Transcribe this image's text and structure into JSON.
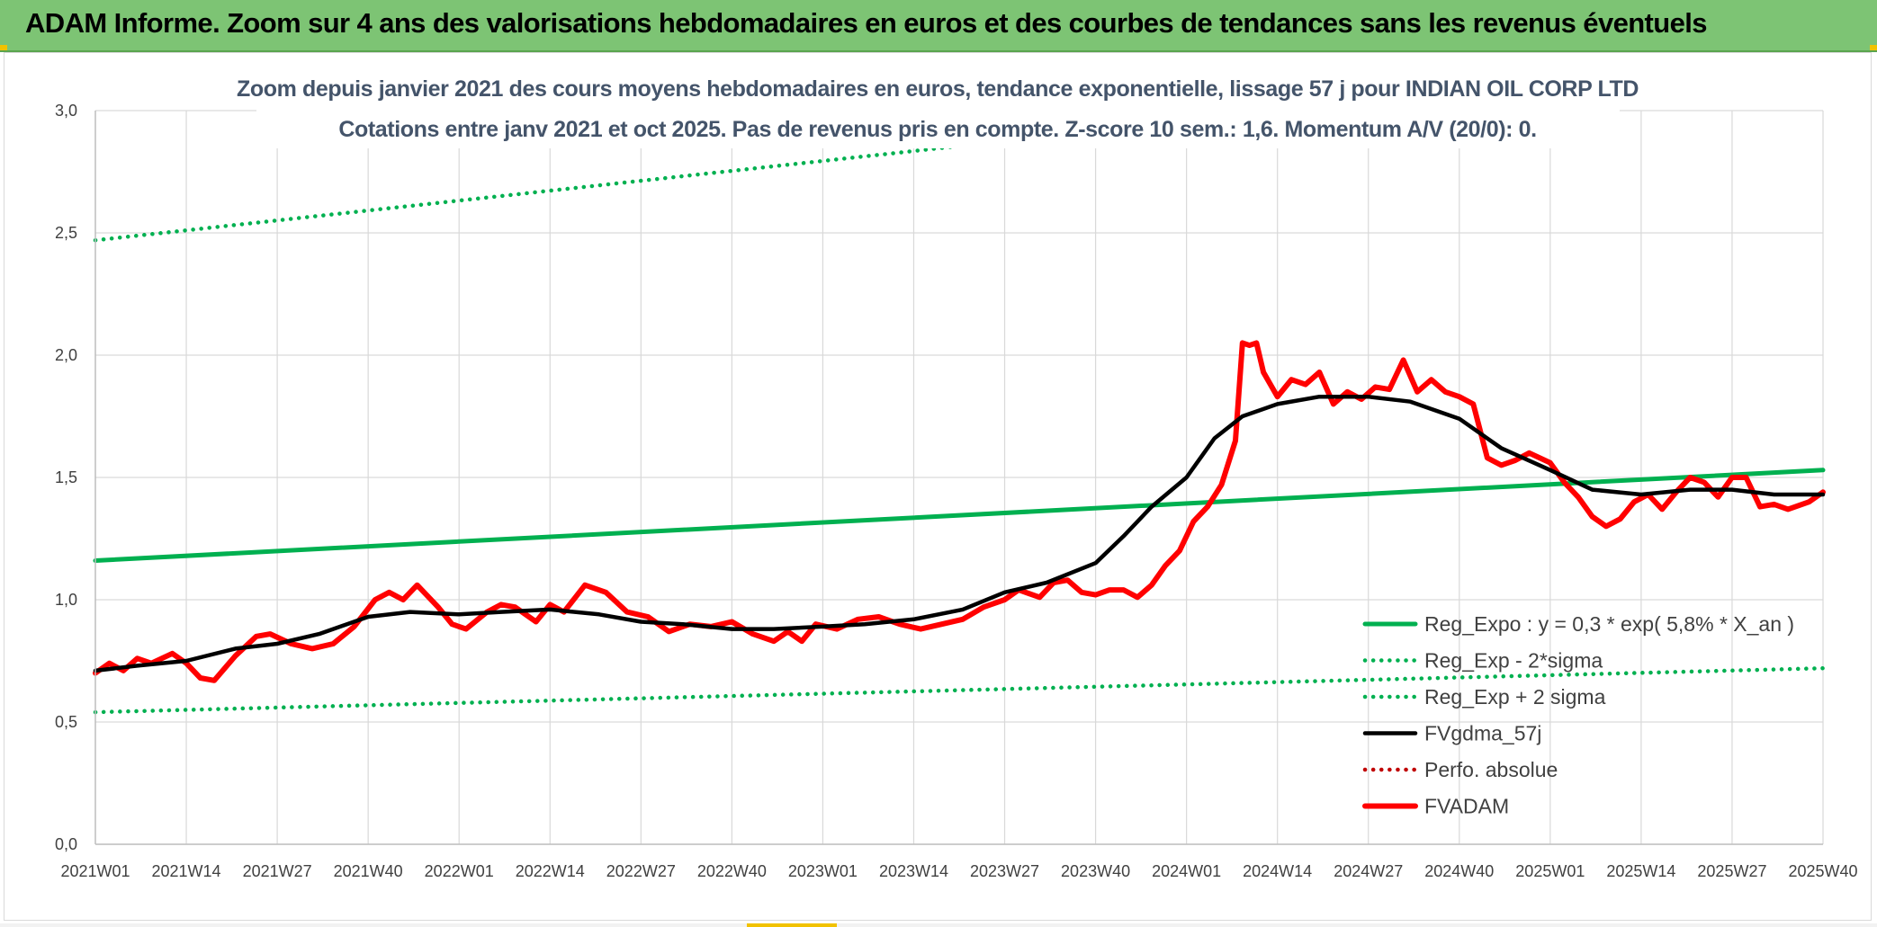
{
  "header": {
    "title": "ADAM Informe. Zoom sur 4 ans des valorisations hebdomadaires en euros et des courbes de tendances sans les revenus éventuels"
  },
  "colors": {
    "banner": "#7dc474",
    "reg_expo": "#00b050",
    "fvgdma": "#000000",
    "fvadam": "#ff0000",
    "perfo": "#c00000",
    "grid": "#d9d9d9"
  },
  "chart_data": {
    "type": "line",
    "title": "Zoom depuis janvier 2021 des cours moyens hebdomadaires en euros, tendance exponentielle, lissage 57 j pour INDIAN OIL CORP LTD",
    "subtitle": "Cotations entre janv 2021 et oct 2025. Pas de revenus pris en compte. Z-score 10 sem.: 1,6. Momentum A/V (20/0): 0.",
    "x_unit": "semaine",
    "x_ticks": [
      "2021W01",
      "2021W14",
      "2021W27",
      "2021W40",
      "2022W01",
      "2022W14",
      "2022W27",
      "2022W40",
      "2023W01",
      "2023W14",
      "2023W27",
      "2023W40",
      "2024W01",
      "2024W14",
      "2024W27",
      "2024W40",
      "2025W01",
      "2025W14",
      "2025W27",
      "2025W40"
    ],
    "ylim": [
      0,
      3
    ],
    "y_ticks": [
      "0,0",
      "0,5",
      "1,0",
      "1,5",
      "2,0",
      "2,5",
      "3,0"
    ],
    "grid": true,
    "legend_position": "bottom-right",
    "series": [
      {
        "name": "Reg_Expo : y = 0,3 * exp( 5,8% *  X_an )",
        "style": "solid",
        "color": "#00b050",
        "points": [
          [
            "2021W01",
            1.16
          ],
          [
            "2025W40",
            1.53
          ]
        ]
      },
      {
        "name": "Reg_Exp - 2*sigma",
        "style": "dotted",
        "color": "#00b050",
        "points": [
          [
            "2021W01",
            0.54
          ],
          [
            "2025W40",
            0.72
          ]
        ]
      },
      {
        "name": "Reg_Exp + 2 sigma",
        "style": "dotted",
        "color": "#00b050",
        "points": [
          [
            "2021W01",
            2.47
          ],
          [
            "2025W40",
            3.24
          ]
        ]
      },
      {
        "name": "FVgdma_57j",
        "style": "solid",
        "color": "#000000",
        "points": [
          [
            "2021W01",
            0.71
          ],
          [
            "2021W07",
            0.73
          ],
          [
            "2021W14",
            0.75
          ],
          [
            "2021W21",
            0.8
          ],
          [
            "2021W27",
            0.82
          ],
          [
            "2021W33",
            0.86
          ],
          [
            "2021W40",
            0.93
          ],
          [
            "2021W46",
            0.95
          ],
          [
            "2022W01",
            0.94
          ],
          [
            "2022W07",
            0.95
          ],
          [
            "2022W14",
            0.96
          ],
          [
            "2022W21",
            0.94
          ],
          [
            "2022W27",
            0.91
          ],
          [
            "2022W33",
            0.9
          ],
          [
            "2022W40",
            0.88
          ],
          [
            "2022W46",
            0.88
          ],
          [
            "2023W01",
            0.89
          ],
          [
            "2023W07",
            0.9
          ],
          [
            "2023W14",
            0.92
          ],
          [
            "2023W21",
            0.96
          ],
          [
            "2023W27",
            1.03
          ],
          [
            "2023W33",
            1.07
          ],
          [
            "2023W40",
            1.15
          ],
          [
            "2023W44",
            1.26
          ],
          [
            "2023W48",
            1.38
          ],
          [
            "2024W01",
            1.5
          ],
          [
            "2024W05",
            1.66
          ],
          [
            "2024W09",
            1.75
          ],
          [
            "2024W14",
            1.8
          ],
          [
            "2024W20",
            1.83
          ],
          [
            "2024W27",
            1.83
          ],
          [
            "2024W33",
            1.81
          ],
          [
            "2024W40",
            1.74
          ],
          [
            "2024W46",
            1.62
          ],
          [
            "2025W01",
            1.53
          ],
          [
            "2025W07",
            1.45
          ],
          [
            "2025W14",
            1.43
          ],
          [
            "2025W21",
            1.45
          ],
          [
            "2025W27",
            1.45
          ],
          [
            "2025W33",
            1.43
          ],
          [
            "2025W40",
            1.43
          ]
        ]
      },
      {
        "name": "Perfo. absolue",
        "style": "dotted",
        "color": "#c00000",
        "points": []
      },
      {
        "name": "FVADAM",
        "style": "solid",
        "color": "#ff0000",
        "points": [
          [
            "2021W01",
            0.7
          ],
          [
            "2021W03",
            0.74
          ],
          [
            "2021W05",
            0.71
          ],
          [
            "2021W07",
            0.76
          ],
          [
            "2021W09",
            0.74
          ],
          [
            "2021W12",
            0.78
          ],
          [
            "2021W14",
            0.74
          ],
          [
            "2021W16",
            0.68
          ],
          [
            "2021W18",
            0.67
          ],
          [
            "2021W21",
            0.77
          ],
          [
            "2021W24",
            0.85
          ],
          [
            "2021W26",
            0.86
          ],
          [
            "2021W29",
            0.82
          ],
          [
            "2021W32",
            0.8
          ],
          [
            "2021W35",
            0.82
          ],
          [
            "2021W38",
            0.89
          ],
          [
            "2021W41",
            1.0
          ],
          [
            "2021W43",
            1.03
          ],
          [
            "2021W45",
            1.0
          ],
          [
            "2021W47",
            1.06
          ],
          [
            "2021W50",
            0.97
          ],
          [
            "2021W52",
            0.9
          ],
          [
            "2022W02",
            0.88
          ],
          [
            "2022W05",
            0.95
          ],
          [
            "2022W07",
            0.98
          ],
          [
            "2022W09",
            0.97
          ],
          [
            "2022W12",
            0.91
          ],
          [
            "2022W14",
            0.98
          ],
          [
            "2022W16",
            0.95
          ],
          [
            "2022W19",
            1.06
          ],
          [
            "2022W22",
            1.03
          ],
          [
            "2022W25",
            0.95
          ],
          [
            "2022W28",
            0.93
          ],
          [
            "2022W31",
            0.87
          ],
          [
            "2022W34",
            0.9
          ],
          [
            "2022W37",
            0.89
          ],
          [
            "2022W40",
            0.91
          ],
          [
            "2022W43",
            0.86
          ],
          [
            "2022W46",
            0.83
          ],
          [
            "2022W48",
            0.87
          ],
          [
            "2022W50",
            0.83
          ],
          [
            "2022W52",
            0.9
          ],
          [
            "2023W03",
            0.88
          ],
          [
            "2023W06",
            0.92
          ],
          [
            "2023W09",
            0.93
          ],
          [
            "2023W12",
            0.9
          ],
          [
            "2023W15",
            0.88
          ],
          [
            "2023W18",
            0.9
          ],
          [
            "2023W21",
            0.92
          ],
          [
            "2023W24",
            0.97
          ],
          [
            "2023W27",
            1.0
          ],
          [
            "2023W29",
            1.04
          ],
          [
            "2023W32",
            1.01
          ],
          [
            "2023W34",
            1.07
          ],
          [
            "2023W36",
            1.08
          ],
          [
            "2023W38",
            1.03
          ],
          [
            "2023W40",
            1.02
          ],
          [
            "2023W42",
            1.04
          ],
          [
            "2023W44",
            1.04
          ],
          [
            "2023W46",
            1.01
          ],
          [
            "2023W48",
            1.06
          ],
          [
            "2023W50",
            1.14
          ],
          [
            "2023W52",
            1.2
          ],
          [
            "2024W02",
            1.32
          ],
          [
            "2024W04",
            1.38
          ],
          [
            "2024W06",
            1.47
          ],
          [
            "2024W08",
            1.65
          ],
          [
            "2024W09",
            2.05
          ],
          [
            "2024W10",
            2.04
          ],
          [
            "2024W11",
            2.05
          ],
          [
            "2024W12",
            1.93
          ],
          [
            "2024W14",
            1.83
          ],
          [
            "2024W16",
            1.9
          ],
          [
            "2024W18",
            1.88
          ],
          [
            "2024W20",
            1.93
          ],
          [
            "2024W22",
            1.8
          ],
          [
            "2024W24",
            1.85
          ],
          [
            "2024W26",
            1.82
          ],
          [
            "2024W28",
            1.87
          ],
          [
            "2024W30",
            1.86
          ],
          [
            "2024W32",
            1.98
          ],
          [
            "2024W34",
            1.85
          ],
          [
            "2024W36",
            1.9
          ],
          [
            "2024W38",
            1.85
          ],
          [
            "2024W40",
            1.83
          ],
          [
            "2024W42",
            1.8
          ],
          [
            "2024W44",
            1.58
          ],
          [
            "2024W46",
            1.55
          ],
          [
            "2024W48",
            1.57
          ],
          [
            "2024W50",
            1.6
          ],
          [
            "2025W01",
            1.56
          ],
          [
            "2025W03",
            1.48
          ],
          [
            "2025W05",
            1.42
          ],
          [
            "2025W07",
            1.34
          ],
          [
            "2025W09",
            1.3
          ],
          [
            "2025W11",
            1.33
          ],
          [
            "2025W13",
            1.4
          ],
          [
            "2025W15",
            1.43
          ],
          [
            "2025W17",
            1.37
          ],
          [
            "2025W19",
            1.44
          ],
          [
            "2025W21",
            1.5
          ],
          [
            "2025W23",
            1.48
          ],
          [
            "2025W25",
            1.42
          ],
          [
            "2025W27",
            1.5
          ],
          [
            "2025W29",
            1.5
          ],
          [
            "2025W31",
            1.38
          ],
          [
            "2025W33",
            1.39
          ],
          [
            "2025W35",
            1.37
          ],
          [
            "2025W38",
            1.4
          ],
          [
            "2025W40",
            1.44
          ]
        ]
      }
    ]
  }
}
